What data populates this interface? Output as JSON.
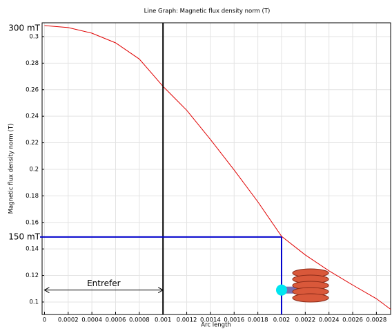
{
  "chart_data": {
    "type": "line",
    "title": "Line Graph: Magnetic flux density norm (T)",
    "xlabel": "Arc length",
    "ylabel": "Magnetic flux density norm (T)",
    "x": [
      0,
      0.0002,
      0.0004,
      0.0006,
      0.0008,
      0.001,
      0.0012,
      0.0014,
      0.0016,
      0.0018,
      0.002,
      0.0022,
      0.0024,
      0.0026,
      0.0028,
      0.00292
    ],
    "series": [
      {
        "color": "#e00000",
        "values": [
          0.3083,
          0.3068,
          0.3026,
          0.2953,
          0.2831,
          0.2625,
          0.2445,
          0.2225,
          0.1995,
          0.1755,
          0.1495,
          0.1355,
          0.1235,
          0.1128,
          0.1025,
          0.0945
        ]
      }
    ],
    "xlim": [
      -2e-05,
      0.00292
    ],
    "ylim": [
      0.0906,
      0.3104
    ],
    "xticks": [
      0,
      0.0002,
      0.0004,
      0.0006,
      0.0008,
      0.001,
      0.0012,
      0.0014,
      0.0016,
      0.0018,
      0.002,
      0.0022,
      0.0024,
      0.0026,
      0.0028
    ],
    "yticks": [
      0.1,
      0.12,
      0.14,
      0.16,
      0.18,
      0.2,
      0.22,
      0.24,
      0.26,
      0.28,
      0.3
    ],
    "grid": true,
    "vline": {
      "x": 0.001,
      "color": "#000000"
    },
    "blue_lines": {
      "x": 0.002,
      "y": 0.149,
      "color": "#0000cc"
    },
    "top_label": {
      "text": "300 mT",
      "color": "#e00000"
    },
    "mid_label": {
      "text": "150 mT",
      "color": "#0000cc"
    },
    "gap_label": {
      "text": "Entrefer",
      "y": 0.109
    }
  }
}
